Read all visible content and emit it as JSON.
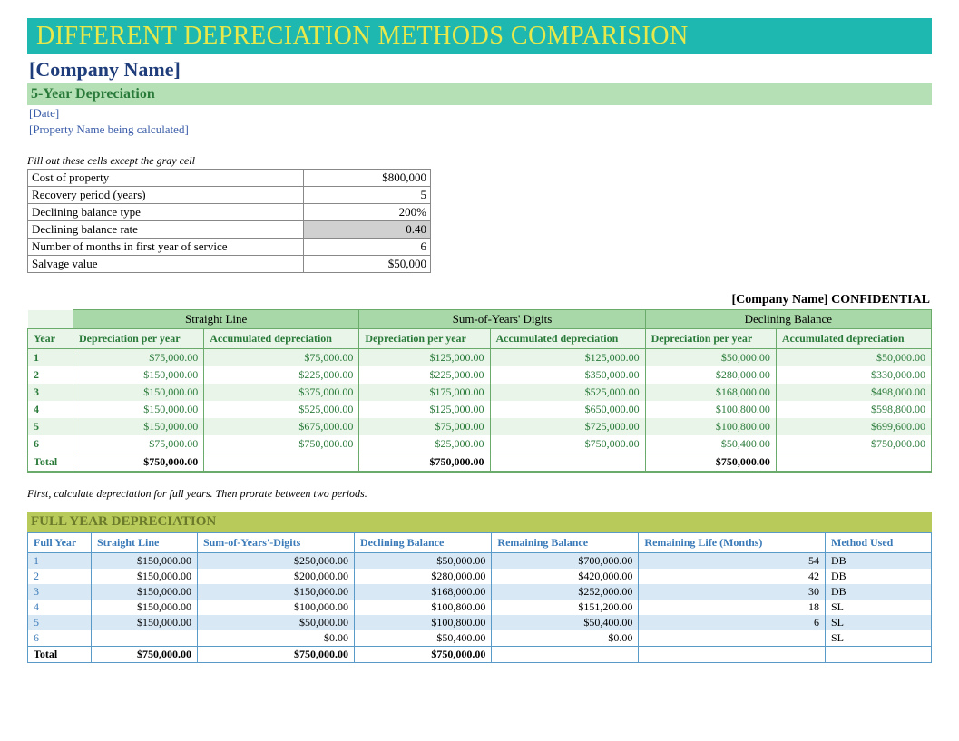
{
  "banner_title": "DIFFERENT DEPRECIATION METHODS COMPARISION",
  "company_name": "[Company Name]",
  "subtitle": "5-Year Depreciation",
  "date_placeholder": "[Date]",
  "property_placeholder": "[Property Name being calculated]",
  "params_instruction": "Fill out these cells except the gray cell",
  "params": [
    {
      "label": "Cost of property",
      "value": "$800,000",
      "gray": false
    },
    {
      "label": "Recovery period (years)",
      "value": "5",
      "gray": false
    },
    {
      "label": "Declining balance type",
      "value": "200%",
      "gray": false
    },
    {
      "label": "Declining balance rate",
      "value": "0.40",
      "gray": true
    },
    {
      "label": "Number of months in first year of service",
      "value": "6",
      "gray": false
    },
    {
      "label": "Salvage value",
      "value": "$50,000",
      "gray": false
    }
  ],
  "confidential_text": "[Company Name]  CONFIDENTIAL",
  "dep_methods": [
    "Straight Line",
    "Sum-of-Years' Digits",
    "Declining Balance"
  ],
  "dep_subheads": [
    "Depreciation per year",
    "Accumulated depreciation"
  ],
  "year_label": "Year",
  "total_label": "Total",
  "dep_rows": [
    {
      "y": "1",
      "sl_d": "$75,000.00",
      "sl_a": "$75,000.00",
      "sy_d": "$125,000.00",
      "sy_a": "$125,000.00",
      "db_d": "$50,000.00",
      "db_a": "$50,000.00"
    },
    {
      "y": "2",
      "sl_d": "$150,000.00",
      "sl_a": "$225,000.00",
      "sy_d": "$225,000.00",
      "sy_a": "$350,000.00",
      "db_d": "$280,000.00",
      "db_a": "$330,000.00"
    },
    {
      "y": "3",
      "sl_d": "$150,000.00",
      "sl_a": "$375,000.00",
      "sy_d": "$175,000.00",
      "sy_a": "$525,000.00",
      "db_d": "$168,000.00",
      "db_a": "$498,000.00"
    },
    {
      "y": "4",
      "sl_d": "$150,000.00",
      "sl_a": "$525,000.00",
      "sy_d": "$125,000.00",
      "sy_a": "$650,000.00",
      "db_d": "$100,800.00",
      "db_a": "$598,800.00"
    },
    {
      "y": "5",
      "sl_d": "$150,000.00",
      "sl_a": "$675,000.00",
      "sy_d": "$75,000.00",
      "sy_a": "$725,000.00",
      "db_d": "$100,800.00",
      "db_a": "$699,600.00"
    },
    {
      "y": "6",
      "sl_d": "$75,000.00",
      "sl_a": "$750,000.00",
      "sy_d": "$25,000.00",
      "sy_a": "$750,000.00",
      "db_d": "$50,400.00",
      "db_a": "$750,000.00"
    }
  ],
  "dep_totals": {
    "sl": "$750,000.00",
    "sy": "$750,000.00",
    "db": "$750,000.00"
  },
  "note2": "First, calculate depreciation for full years.  Then prorate between two periods.",
  "full_header": "FULL YEAR DEPRECIATION",
  "full_cols": [
    "Full Year",
    "Straight Line",
    "Sum-of-Years'-Digits",
    "Declining Balance",
    "Remaining Balance",
    "Remaining Life (Months)",
    "Method Used"
  ],
  "full_rows": [
    {
      "y": "1",
      "sl": "$150,000.00",
      "sy": "$250,000.00",
      "db": "$50,000.00",
      "rb": "$700,000.00",
      "rl": "54",
      "m": "DB"
    },
    {
      "y": "2",
      "sl": "$150,000.00",
      "sy": "$200,000.00",
      "db": "$280,000.00",
      "rb": "$420,000.00",
      "rl": "42",
      "m": "DB"
    },
    {
      "y": "3",
      "sl": "$150,000.00",
      "sy": "$150,000.00",
      "db": "$168,000.00",
      "rb": "$252,000.00",
      "rl": "30",
      "m": "DB"
    },
    {
      "y": "4",
      "sl": "$150,000.00",
      "sy": "$100,000.00",
      "db": "$100,800.00",
      "rb": "$151,200.00",
      "rl": "18",
      "m": "SL"
    },
    {
      "y": "5",
      "sl": "$150,000.00",
      "sy": "$50,000.00",
      "db": "$100,800.00",
      "rb": "$50,400.00",
      "rl": "6",
      "m": "SL"
    },
    {
      "y": "6",
      "sl": "",
      "sy": "$0.00",
      "db": "$50,400.00",
      "rb": "$0.00",
      "rl": "",
      "m": "SL"
    }
  ],
  "full_totals": {
    "label": "Total",
    "sl": "$750,000.00",
    "sy": "$750,000.00",
    "db": "$750,000.00"
  },
  "colors": {
    "banner_bg": "#1fb8b0",
    "banner_fg": "#e8e84a",
    "green_header": "#b5e0b5",
    "green_text": "#2a7a3a",
    "green_border": "#6aaa6a",
    "green_light": "#e8f5e8",
    "olive_bg": "#b8ca5a",
    "olive_fg": "#6a7a2a",
    "blue_border": "#5a9ac8",
    "blue_text": "#3a7ab8",
    "blue_light": "#d8e8f5"
  }
}
